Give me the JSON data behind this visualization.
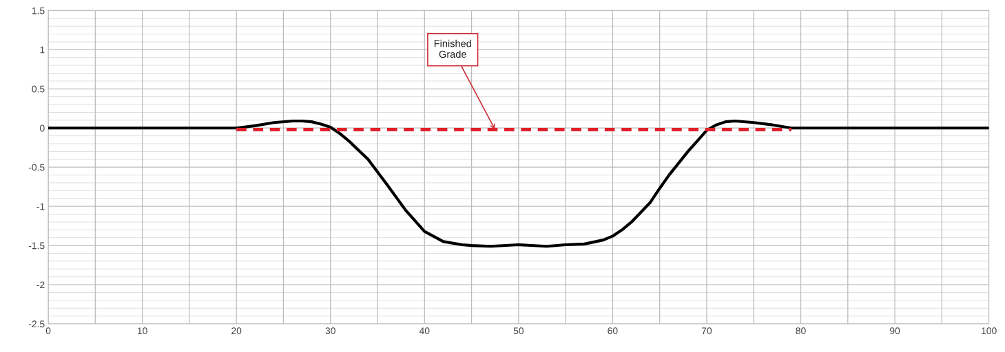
{
  "chart_data": {
    "type": "line",
    "series": [
      {
        "color": "#000000",
        "line_style": "solid",
        "x": [
          0,
          10,
          20,
          22,
          24,
          26,
          27,
          28,
          29,
          30,
          31,
          32,
          34,
          36,
          38,
          40,
          42,
          44,
          45,
          47,
          50,
          53,
          55,
          57,
          59,
          60,
          61,
          62,
          64,
          65,
          66,
          68,
          70,
          71,
          72,
          73,
          75,
          77,
          79,
          90,
          100
        ],
        "values": [
          0,
          0,
          0,
          0.03,
          0.07,
          0.09,
          0.09,
          0.08,
          0.05,
          0.01,
          -0.07,
          -0.17,
          -0.4,
          -0.72,
          -1.05,
          -1.32,
          -1.45,
          -1.49,
          -1.5,
          -1.51,
          -1.49,
          -1.51,
          -1.49,
          -1.48,
          -1.43,
          -1.38,
          -1.3,
          -1.2,
          -0.95,
          -0.77,
          -0.6,
          -0.3,
          -0.03,
          0.04,
          0.08,
          0.09,
          0.07,
          0.04,
          0,
          0,
          0
        ]
      },
      {
        "color": "#e0202a",
        "line_style": "dashed",
        "x": [
          20,
          79
        ],
        "values": [
          -0.02,
          -0.02
        ]
      }
    ],
    "annotations": [
      {
        "text": "Finished\nGrade",
        "x": 47.5,
        "y": -0.02
      }
    ],
    "xlim": [
      0,
      100
    ],
    "xticks": [
      0,
      {
        "value": 5,
        "label": null
      },
      10,
      {
        "value": 15,
        "label": null
      },
      20,
      {
        "value": 25,
        "label": null
      },
      30,
      {
        "value": 35,
        "label": null
      },
      40,
      {
        "value": 45,
        "label": null
      },
      50,
      {
        "value": 55,
        "label": null
      },
      60,
      {
        "value": 65,
        "label": null
      },
      70,
      {
        "value": 75,
        "label": null
      },
      80,
      {
        "value": 85,
        "label": null
      },
      90,
      {
        "value": 95,
        "label": null
      },
      100
    ],
    "ylim": [
      -2.5,
      1.5
    ],
    "yticks": [
      -2.5,
      -2,
      -1.5,
      -1,
      -0.5,
      0,
      0.5,
      1,
      1.5
    ],
    "grid": true,
    "marker": "none"
  }
}
